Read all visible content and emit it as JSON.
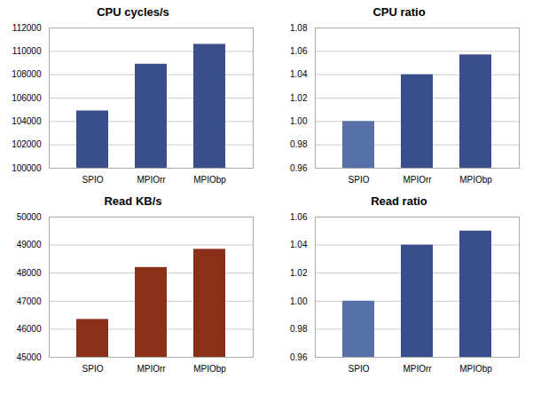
{
  "chart_data": [
    {
      "type": "bar",
      "title": "CPU cycles/s",
      "categories": [
        "SPIO",
        "MPIOrr",
        "MPIObp"
      ],
      "values": [
        104900,
        108900,
        110600
      ],
      "colors": [
        "#3A4E8C",
        "#3A4E8C",
        "#3A4E8C"
      ],
      "ylim": [
        100000,
        112000
      ],
      "yticks": [
        100000,
        102000,
        104000,
        106000,
        108000,
        110000,
        112000
      ],
      "grid": true
    },
    {
      "type": "bar",
      "title": "CPU ratio",
      "categories": [
        "SPIO",
        "MPIOrr",
        "MPIObp"
      ],
      "values": [
        1.0,
        1.04,
        1.057
      ],
      "colors": [
        "#5870A8",
        "#3A4E8C",
        "#3A4E8C"
      ],
      "ylim": [
        0.96,
        1.08
      ],
      "yticks": [
        0.96,
        0.98,
        {
          "value": 1.0,
          "label": "1.00"
        },
        1.02,
        1.04,
        1.06,
        1.08
      ],
      "grid": true
    },
    {
      "type": "bar",
      "title": "Read KB/s",
      "categories": [
        "SPIO",
        "MPIOrr",
        "MPIObp"
      ],
      "values": [
        46350,
        48200,
        48850
      ],
      "colors": [
        "#8B2E1A",
        "#8B2E1A",
        "#8B2E1A"
      ],
      "ylim": [
        45000,
        50000
      ],
      "yticks": [
        45000,
        46000,
        47000,
        48000,
        49000,
        50000
      ],
      "grid": true
    },
    {
      "type": "bar",
      "title": "Read ratio",
      "categories": [
        "SPIO",
        "MPIOrr",
        "MPIObp"
      ],
      "values": [
        1.0,
        1.04,
        1.05
      ],
      "colors": [
        "#5870A8",
        "#3A4E8C",
        "#3A4E8C"
      ],
      "ylim": [
        0.96,
        1.06
      ],
      "yticks": [
        0.96,
        0.98,
        {
          "value": 1.0,
          "label": "1.00"
        },
        1.02,
        1.04,
        1.06
      ],
      "grid": true
    }
  ]
}
